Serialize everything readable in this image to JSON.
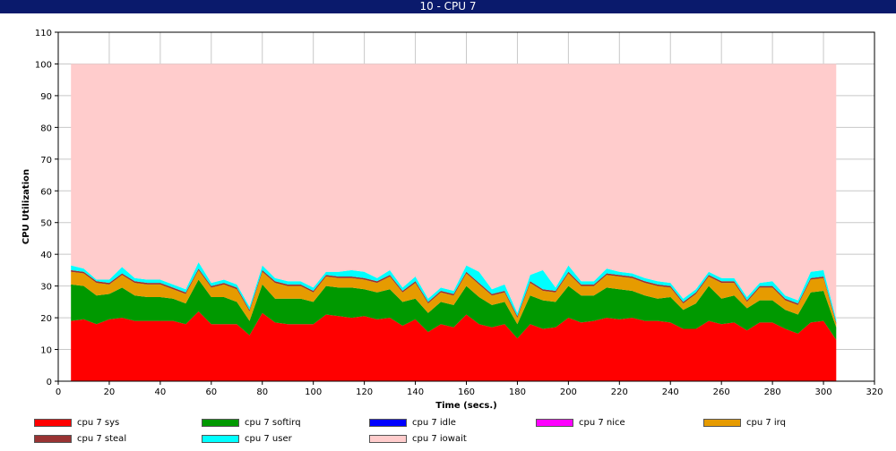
{
  "window": {
    "title": "10 - CPU 7"
  },
  "chart_data": {
    "type": "area",
    "stacked": true,
    "title": "10 - CPU 7",
    "xlabel": "Time (secs.)",
    "ylabel": "CPU Utilization",
    "xlim": [
      0,
      320
    ],
    "ylim": [
      0,
      110
    ],
    "xticks": [
      0,
      20,
      40,
      60,
      80,
      100,
      120,
      140,
      160,
      180,
      200,
      220,
      240,
      260,
      280,
      300,
      320
    ],
    "yticks": [
      0,
      10,
      20,
      30,
      40,
      50,
      60,
      70,
      80,
      90,
      100,
      110
    ],
    "grid": true,
    "legend_position": "bottom",
    "x": [
      5,
      10,
      15,
      20,
      25,
      30,
      35,
      40,
      45,
      50,
      55,
      60,
      65,
      70,
      75,
      80,
      85,
      90,
      95,
      100,
      105,
      110,
      115,
      120,
      125,
      130,
      135,
      140,
      145,
      150,
      155,
      160,
      165,
      170,
      175,
      180,
      185,
      190,
      195,
      200,
      205,
      210,
      215,
      220,
      225,
      230,
      235,
      240,
      245,
      250,
      255,
      260,
      265,
      270,
      275,
      280,
      285,
      290,
      295,
      300,
      305
    ],
    "series": [
      {
        "name": "cpu 7 sys",
        "color": "#ff0000",
        "values": [
          19,
          19.5,
          18,
          19.5,
          20,
          19,
          19,
          19,
          19,
          18,
          22,
          18,
          18,
          18,
          14.5,
          21.5,
          18.5,
          18,
          18,
          18,
          21,
          20.5,
          20,
          20.5,
          19.5,
          20,
          17.5,
          19.5,
          15.5,
          18,
          17,
          21,
          18,
          17,
          18,
          13.5,
          18,
          16.5,
          17,
          20,
          18.5,
          19,
          20,
          19.5,
          20,
          19,
          19,
          18.5,
          16.5,
          16.5,
          19,
          18,
          18.5,
          16,
          18.5,
          18.5,
          16.5,
          15,
          18.5,
          19,
          13
        ]
      },
      {
        "name": "cpu 7 softirq",
        "color": "#009900",
        "values": [
          11.5,
          10.5,
          9,
          8,
          9.5,
          8,
          7.5,
          7.5,
          7,
          6.5,
          10,
          8.5,
          8.5,
          7,
          4.5,
          9,
          7.5,
          8,
          8,
          7,
          9,
          9,
          9.5,
          8.5,
          8.5,
          9,
          7.5,
          6.5,
          6,
          7,
          7,
          9,
          8.5,
          7,
          7,
          4.5,
          9,
          9,
          8,
          10,
          8.5,
          8,
          9.5,
          9.5,
          8.5,
          8,
          7,
          8,
          6,
          8,
          11,
          8,
          8.5,
          7,
          7,
          7,
          6,
          6,
          9.5,
          9.5,
          4
        ]
      },
      {
        "name": "cpu 7 idle",
        "color": "#0000ff",
        "values": [
          0,
          0,
          0,
          0,
          0,
          0,
          0,
          0,
          0,
          0,
          0,
          0,
          0,
          0,
          0,
          0,
          0,
          0,
          0,
          0,
          0,
          0,
          0,
          0,
          0,
          0,
          0,
          0,
          0,
          0,
          0,
          0,
          0,
          0,
          0,
          0,
          0,
          0,
          0,
          0,
          0,
          0,
          0,
          0,
          0,
          0,
          0,
          0,
          0,
          0,
          0,
          0,
          0,
          0,
          0,
          0,
          0,
          0,
          0,
          0,
          0
        ]
      },
      {
        "name": "cpu 7 nice",
        "color": "#ff00ff",
        "values": [
          0,
          0,
          0,
          0,
          0,
          0,
          0,
          0,
          0,
          0,
          0,
          0,
          0,
          0,
          0,
          0,
          0,
          0,
          0,
          0,
          0,
          0,
          0,
          0,
          0,
          0,
          0,
          0,
          0,
          0,
          0,
          0,
          0,
          0,
          0,
          0,
          0,
          0,
          0,
          0,
          0,
          0,
          0,
          0,
          0,
          0,
          0,
          0,
          0,
          0,
          0,
          0,
          0,
          0,
          0,
          0,
          0,
          0,
          0,
          0,
          0
        ]
      },
      {
        "name": "cpu 7 irq",
        "color": "#e69b00",
        "values": [
          4,
          4,
          4,
          3,
          4,
          4,
          4,
          4,
          3,
          3,
          3,
          3,
          4,
          4,
          3,
          4,
          5,
          4,
          4,
          3,
          3,
          3,
          3,
          3,
          3,
          4,
          3,
          5,
          3,
          3,
          3,
          4,
          4,
          3,
          3,
          2,
          4,
          3,
          3,
          4,
          3,
          3,
          4,
          4,
          4,
          4,
          4,
          3,
          2,
          3,
          3,
          5,
          4,
          2,
          4,
          4,
          3,
          3,
          4,
          4,
          1
        ]
      },
      {
        "name": "cpu 7 steal",
        "color": "#993333",
        "values": [
          0.5,
          0.5,
          0.5,
          0.5,
          0.5,
          0.5,
          0.5,
          0.5,
          0.5,
          0.5,
          0.5,
          0.5,
          0.5,
          0.5,
          0.5,
          0.5,
          0.5,
          0.5,
          0.5,
          0.5,
          0.5,
          0.5,
          0.5,
          0.5,
          0.5,
          0.5,
          0.5,
          0.5,
          0.5,
          0.5,
          0.5,
          0.5,
          0.5,
          0.5,
          0.5,
          0.5,
          0.5,
          0.5,
          0.5,
          0.5,
          0.5,
          0.5,
          0.5,
          0.5,
          0.5,
          0.5,
          0.5,
          0.5,
          0.5,
          0.5,
          0.5,
          0.5,
          0.5,
          0.5,
          0.5,
          0.5,
          0.5,
          0.5,
          0.5,
          0.5,
          0.5
        ]
      },
      {
        "name": "cpu 7 user",
        "color": "#00ffff",
        "values": [
          1.5,
          1,
          0.5,
          1,
          2,
          1,
          1,
          1,
          1,
          1,
          2,
          1,
          1,
          1,
          1,
          1.5,
          1,
          1,
          1,
          1,
          1,
          1.5,
          2,
          2,
          1,
          1.5,
          1,
          1.5,
          1,
          1,
          1,
          2,
          3.5,
          1.5,
          2,
          1,
          2,
          6,
          1,
          2,
          1,
          1,
          1.5,
          1,
          1,
          1,
          1,
          1,
          1,
          1,
          1,
          1,
          1,
          1,
          1,
          1.5,
          1,
          1,
          2,
          2,
          1
        ]
      },
      {
        "name": "cpu 7 iowait",
        "color": "#ffcccc",
        "values": [
          63.5,
          64.5,
          68,
          68,
          64,
          67.5,
          68,
          68,
          69.5,
          71,
          62.5,
          69,
          68,
          69.5,
          76.5,
          63.5,
          67.5,
          68.5,
          68.5,
          70.5,
          65.5,
          65.5,
          65,
          65.5,
          67.5,
          65,
          70.5,
          67,
          74,
          70.5,
          71.5,
          63.5,
          65.5,
          71,
          69.5,
          78.5,
          66.5,
          65,
          70.5,
          63.5,
          68.5,
          68.5,
          64.5,
          65.5,
          66,
          67.5,
          68.5,
          69,
          74,
          71,
          65.5,
          67.5,
          67.5,
          73.5,
          69,
          68.5,
          73,
          74.5,
          65.5,
          65,
          80.5
        ]
      }
    ]
  }
}
